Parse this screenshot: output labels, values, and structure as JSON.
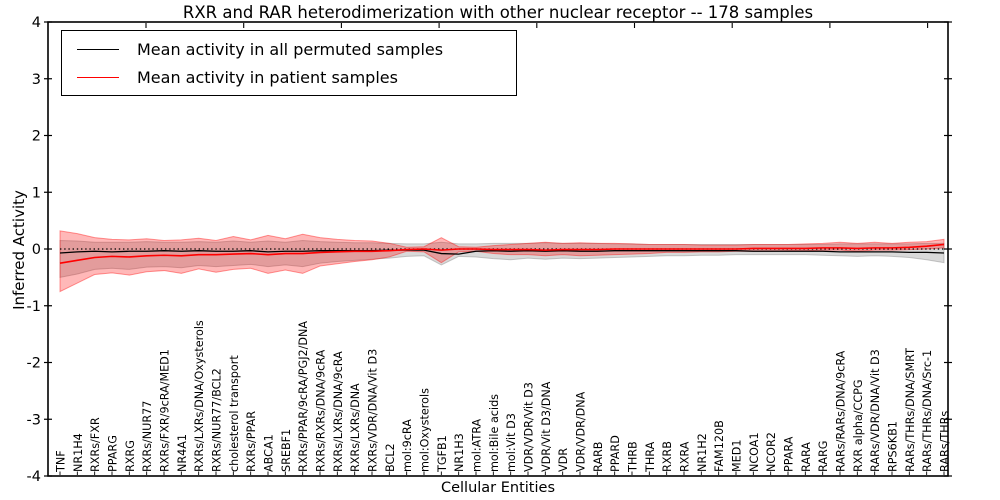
{
  "title": "RXR and RAR heterodimerization with other nuclear receptor -- 178 samples",
  "axes": {
    "ylabel": "Inferred Activity",
    "xlabel": "Cellular Entities"
  },
  "legend": {
    "items": [
      {
        "label": "Mean activity in all permuted samples",
        "color": "#000000"
      },
      {
        "label": "Mean activity in patient samples",
        "color": "#ff0000"
      }
    ]
  },
  "colors": {
    "black_line": "#000000",
    "red_line": "#ff0000",
    "gray_band": "#808080",
    "red_band": "#ff0000",
    "frame": "#000000"
  },
  "chart_data": {
    "type": "line",
    "title": "RXR and RAR heterodimerization with other nuclear receptor -- 178 samples",
    "xlabel": "Cellular Entities",
    "ylabel": "Inferred Activity",
    "ylim": [
      -4,
      4
    ],
    "yticks": [
      4,
      3,
      2,
      1,
      0,
      -1,
      -2,
      -3,
      -4
    ],
    "grid": false,
    "legend_position": "upper left",
    "zero_reference_line": "dotted black at y=0",
    "categories": [
      "TNF",
      "NR1H4",
      "RXRs/FXR",
      "PPARG",
      "RXRG",
      "RXRs/NUR77",
      "RXRs/FXR/9cRA/MED1",
      "NR4A1",
      "RXRs/LXRs/DNA/Oxysterols",
      "RXRs/NUR77/BCL2",
      "cholesterol transport",
      "RXRs/PPAR",
      "ABCA1",
      "SREBF1",
      "RXRs/PPAR/9cRA/PGJ2/DNA",
      "RXRs/RXRs/DNA/9cRA",
      "RXRs/LXRs/DNA/9cRA",
      "RXRs/LXRs/DNA",
      "RXRs/VDR/DNA/Vit D3",
      "BCL2",
      "mol:9cRA",
      "mol:Oxysterols",
      "TGFB1",
      "NR1H3",
      "mol:ATRA",
      "mol:Bile acids",
      "mol:Vit D3",
      "VDR/VDR/Vit D3",
      "VDR/Vit D3/DNA",
      "VDR",
      "VDR/VDR/DNA",
      "RARB",
      "PPARD",
      "THRB",
      "THRA",
      "RXRB",
      "RXRA",
      "NR1H2",
      "FAM120B",
      "MED1",
      "NCOA1",
      "NCOR2",
      "PPARA",
      "RARA",
      "RARG",
      "RARs/RARs/DNA/9cRA",
      "RXR alpha/CCPG",
      "RARs/VDR/DNA/Vit D3",
      "RPS6KB1",
      "RARs/THRs/DNA/SMRT",
      "RARs/THRs/DNA/Src-1",
      "RARs/THRs"
    ],
    "series": [
      {
        "name": "Mean activity in all permuted samples",
        "color": "#000000",
        "values": [
          -0.07,
          -0.05,
          -0.04,
          -0.05,
          -0.04,
          -0.04,
          -0.03,
          -0.04,
          -0.03,
          -0.04,
          -0.04,
          -0.03,
          -0.05,
          -0.04,
          -0.04,
          -0.03,
          -0.03,
          -0.03,
          -0.03,
          -0.02,
          -0.02,
          -0.02,
          -0.08,
          -0.09,
          -0.04,
          -0.03,
          -0.04,
          -0.03,
          -0.04,
          -0.03,
          -0.04,
          -0.04,
          -0.03,
          -0.03,
          -0.03,
          -0.03,
          -0.03,
          -0.03,
          -0.03,
          -0.03,
          -0.04,
          -0.04,
          -0.04,
          -0.04,
          -0.04,
          -0.05,
          -0.05,
          -0.05,
          -0.05,
          -0.06,
          -0.06,
          -0.07
        ]
      },
      {
        "name": "Mean activity in patient samples",
        "color": "#ff0000",
        "values": [
          -0.25,
          -0.2,
          -0.15,
          -0.13,
          -0.14,
          -0.12,
          -0.11,
          -0.12,
          -0.1,
          -0.1,
          -0.09,
          -0.08,
          -0.1,
          -0.08,
          -0.08,
          -0.06,
          -0.05,
          -0.04,
          -0.04,
          -0.03,
          -0.01,
          0.0,
          -0.02,
          0.0,
          0.0,
          -0.01,
          -0.01,
          -0.01,
          -0.02,
          -0.01,
          -0.01,
          -0.01,
          0.0,
          0.0,
          0.0,
          0.0,
          0.0,
          0.0,
          0.0,
          0.0,
          0.01,
          0.01,
          0.01,
          0.01,
          0.02,
          0.02,
          0.01,
          0.02,
          0.02,
          0.03,
          0.05,
          0.08
        ]
      }
    ],
    "bands": [
      {
        "name": "permuted-samples-range",
        "color": "#808080",
        "opacity": 0.3,
        "upper": [
          0.15,
          0.14,
          0.12,
          0.12,
          0.12,
          0.13,
          0.12,
          0.12,
          0.13,
          0.12,
          0.14,
          0.12,
          0.14,
          0.12,
          0.15,
          0.13,
          0.12,
          0.11,
          0.11,
          0.1,
          0.09,
          0.09,
          0.12,
          0.09,
          0.09,
          0.1,
          0.1,
          0.1,
          0.11,
          0.1,
          0.1,
          0.1,
          0.09,
          0.09,
          0.08,
          0.08,
          0.08,
          0.08,
          0.08,
          0.08,
          0.08,
          0.08,
          0.08,
          0.08,
          0.08,
          0.09,
          0.09,
          0.09,
          0.09,
          0.09,
          0.1,
          0.1
        ],
        "lower": [
          -0.5,
          -0.44,
          -0.36,
          -0.34,
          -0.36,
          -0.32,
          -0.31,
          -0.33,
          -0.29,
          -0.31,
          -0.29,
          -0.27,
          -0.31,
          -0.28,
          -0.31,
          -0.25,
          -0.22,
          -0.2,
          -0.18,
          -0.16,
          -0.13,
          -0.12,
          -0.28,
          -0.13,
          -0.14,
          -0.17,
          -0.19,
          -0.16,
          -0.18,
          -0.16,
          -0.17,
          -0.16,
          -0.15,
          -0.14,
          -0.13,
          -0.12,
          -0.12,
          -0.11,
          -0.11,
          -0.1,
          -0.1,
          -0.1,
          -0.1,
          -0.1,
          -0.11,
          -0.12,
          -0.13,
          -0.12,
          -0.13,
          -0.15,
          -0.19,
          -0.24
        ]
      },
      {
        "name": "patient-samples-range",
        "color": "#ff0000",
        "opacity": 0.28,
        "upper": [
          0.32,
          0.27,
          0.2,
          0.17,
          0.16,
          0.18,
          0.15,
          0.16,
          0.19,
          0.15,
          0.22,
          0.16,
          0.24,
          0.18,
          0.26,
          0.2,
          0.17,
          0.15,
          0.14,
          0.1,
          0.03,
          0.04,
          0.2,
          0.04,
          0.03,
          0.06,
          0.08,
          0.1,
          0.12,
          0.1,
          0.11,
          0.1,
          0.1,
          0.09,
          0.08,
          0.08,
          0.08,
          0.07,
          0.07,
          0.07,
          0.08,
          0.08,
          0.08,
          0.09,
          0.1,
          0.12,
          0.1,
          0.12,
          0.1,
          0.12,
          0.13,
          0.17
        ],
        "lower": [
          -0.75,
          -0.6,
          -0.45,
          -0.42,
          -0.46,
          -0.4,
          -0.38,
          -0.43,
          -0.35,
          -0.41,
          -0.36,
          -0.34,
          -0.43,
          -0.37,
          -0.43,
          -0.3,
          -0.26,
          -0.22,
          -0.19,
          -0.14,
          -0.04,
          -0.05,
          -0.24,
          -0.05,
          -0.04,
          -0.08,
          -0.1,
          -0.1,
          -0.12,
          -0.1,
          -0.12,
          -0.11,
          -0.1,
          -0.09,
          -0.08,
          -0.06,
          -0.06,
          -0.05,
          -0.05,
          -0.04,
          -0.04,
          -0.04,
          -0.03,
          -0.03,
          -0.02,
          -0.02,
          -0.04,
          -0.02,
          -0.02,
          -0.01,
          0.0,
          0.02
        ]
      }
    ]
  }
}
